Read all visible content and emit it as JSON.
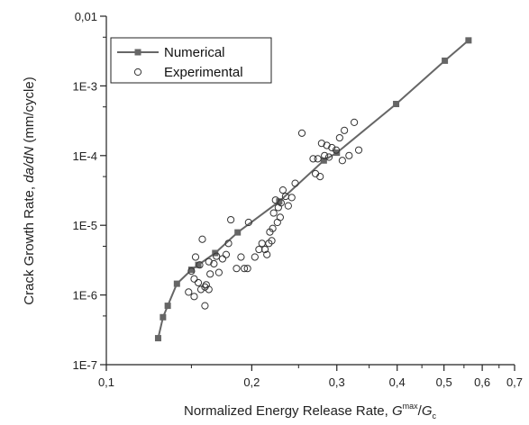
{
  "chart_data": {
    "type": "scatter",
    "x_scale": "log",
    "y_scale": "log",
    "xlim": [
      0.1,
      0.7
    ],
    "ylim": [
      1e-07,
      0.01
    ],
    "x_ticks": [
      {
        "value": 0.1,
        "label": "0,1"
      },
      {
        "value": 0.2,
        "label": "0,2"
      },
      {
        "value": 0.3,
        "label": "0,3"
      },
      {
        "value": 0.4,
        "label": "0,4"
      },
      {
        "value": 0.5,
        "label": "0,5"
      },
      {
        "value": 0.6,
        "label": "0,6"
      },
      {
        "value": 0.7,
        "label": "0,7"
      }
    ],
    "y_ticks": [
      {
        "value": 1e-07,
        "label": "1E-7"
      },
      {
        "value": 1e-06,
        "label": "1E-6"
      },
      {
        "value": 1e-05,
        "label": "1E-5"
      },
      {
        "value": 0.0001,
        "label": "1E-4"
      },
      {
        "value": 0.001,
        "label": "1E-3"
      },
      {
        "value": 0.01,
        "label": "0,01"
      }
    ],
    "xlabel": {
      "prefix": "Normalized Energy Release Rate,  ",
      "g_symbol": "G",
      "superscript": "max",
      "slash": "/",
      "g_symbol2": "G",
      "subscript": "c"
    },
    "ylabel": {
      "prefix": "Crack Growth Rate, ",
      "italic": "da/dN",
      "suffix": " (mm/cycle)"
    },
    "legend": {
      "position": "top-left",
      "entries": [
        "Numerical",
        "Experimental"
      ]
    },
    "series": [
      {
        "name": "Numerical",
        "style": "line-square",
        "color": "#666666",
        "points": [
          [
            0.128,
            2.4e-07
          ],
          [
            0.131,
            4.8e-07
          ],
          [
            0.134,
            7e-07
          ],
          [
            0.14,
            1.45e-06
          ],
          [
            0.15,
            2.3e-06
          ],
          [
            0.155,
            2.7e-06
          ],
          [
            0.168,
            4e-06
          ],
          [
            0.187,
            7.9e-06
          ],
          [
            0.228,
            2.2e-05
          ],
          [
            0.282,
            8.5e-05
          ],
          [
            0.3,
            0.00011
          ],
          [
            0.398,
            0.00055
          ],
          [
            0.502,
            0.0023
          ],
          [
            0.562,
            0.0045
          ]
        ]
      },
      {
        "name": "Experimental",
        "style": "open-circle",
        "color": "#333333",
        "points": [
          [
            0.148,
            1.1e-06
          ],
          [
            0.152,
            9.5e-07
          ],
          [
            0.155,
            1.5e-06
          ],
          [
            0.157,
            1.2e-06
          ],
          [
            0.158,
            6.3e-06
          ],
          [
            0.16,
            7e-07
          ],
          [
            0.16,
            1.3e-06
          ],
          [
            0.161,
            1.4e-06
          ],
          [
            0.163,
            1.2e-06
          ],
          [
            0.163,
            3e-06
          ],
          [
            0.164,
            2e-06
          ],
          [
            0.167,
            2.8e-06
          ],
          [
            0.169,
            3.6e-06
          ],
          [
            0.171,
            2.1e-06
          ],
          [
            0.174,
            3.3e-06
          ],
          [
            0.177,
            3.8e-06
          ],
          [
            0.179,
            5.5e-06
          ],
          [
            0.181,
            1.2e-05
          ],
          [
            0.15,
            2.2e-06
          ],
          [
            0.153,
            3.5e-06
          ],
          [
            0.156,
            2.7e-06
          ],
          [
            0.152,
            1.7e-06
          ],
          [
            0.186,
            2.4e-06
          ],
          [
            0.19,
            3.5e-06
          ],
          [
            0.193,
            2.4e-06
          ],
          [
            0.196,
            2.4e-06
          ],
          [
            0.197,
            1.1e-05
          ],
          [
            0.203,
            3.5e-06
          ],
          [
            0.207,
            4.5e-06
          ],
          [
            0.21,
            5.5e-06
          ],
          [
            0.213,
            4.5e-06
          ],
          [
            0.215,
            3.8e-06
          ],
          [
            0.217,
            5.5e-06
          ],
          [
            0.218,
            8e-06
          ],
          [
            0.22,
            6e-06
          ],
          [
            0.221,
            9e-06
          ],
          [
            0.222,
            1.5e-05
          ],
          [
            0.224,
            2.3e-05
          ],
          [
            0.226,
            1.1e-05
          ],
          [
            0.227,
            1.8e-05
          ],
          [
            0.229,
            1.3e-05
          ],
          [
            0.23,
            2.1e-05
          ],
          [
            0.232,
            3.2e-05
          ],
          [
            0.235,
            2.6e-05
          ],
          [
            0.238,
            1.9e-05
          ],
          [
            0.242,
            2.5e-05
          ],
          [
            0.246,
            4e-05
          ],
          [
            0.254,
            0.00021
          ],
          [
            0.268,
            9e-05
          ],
          [
            0.271,
            5.5e-05
          ],
          [
            0.274,
            9e-05
          ],
          [
            0.277,
            5e-05
          ],
          [
            0.279,
            0.00015
          ],
          [
            0.283,
            0.0001
          ],
          [
            0.286,
            0.00014
          ],
          [
            0.289,
            9.5e-05
          ],
          [
            0.293,
            0.00013
          ],
          [
            0.299,
            0.00012
          ],
          [
            0.304,
            0.00018
          ],
          [
            0.308,
            8.5e-05
          ],
          [
            0.311,
            0.00023
          ],
          [
            0.318,
            0.0001
          ],
          [
            0.326,
            0.0003
          ],
          [
            0.333,
            0.00012
          ]
        ]
      }
    ]
  }
}
